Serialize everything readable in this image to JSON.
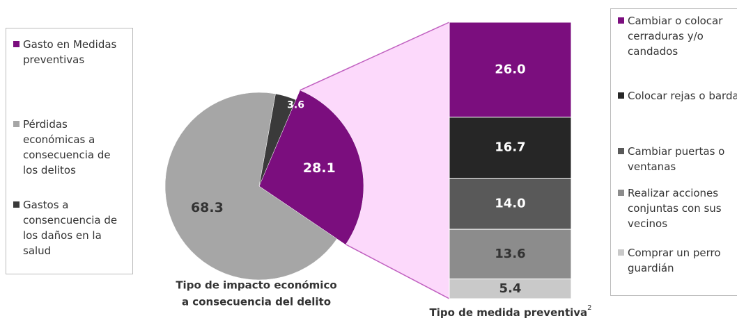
{
  "chart_data": [
    {
      "type": "pie",
      "title": [
        "Tipo de impacto económico",
        "a consecuencia del delito"
      ],
      "categories": [
        "Gasto en Medidas preventivas",
        "Pérdidas económicas a consecuencia de los delitos",
        "Gastos a consencuencia de los daños en la salud"
      ],
      "values": [
        28.1,
        68.3,
        3.6
      ],
      "colors": [
        "#7b0e7e",
        "#a6a6a6",
        "#3a3a3a"
      ]
    },
    {
      "type": "bar",
      "stacked": true,
      "title": "Tipo de medida preventiva",
      "title_footnote": "2",
      "categories": [
        "Cambiar o colocar cerraduras y/o candados",
        "Colocar rejas o bardas",
        "Cambiar puertas o ventanas",
        "Realizar acciones conjuntas con sus vecinos",
        "Comprar un perro guardián"
      ],
      "values": [
        26.0,
        16.7,
        14.0,
        13.6,
        5.4
      ],
      "value_labels": [
        "26.0",
        "16.7",
        "14.0",
        "13.6",
        "5.4"
      ],
      "colors": [
        "#7b0e7e",
        "#262626",
        "#595959",
        "#8c8c8c",
        "#c9c9c9"
      ]
    }
  ]
}
